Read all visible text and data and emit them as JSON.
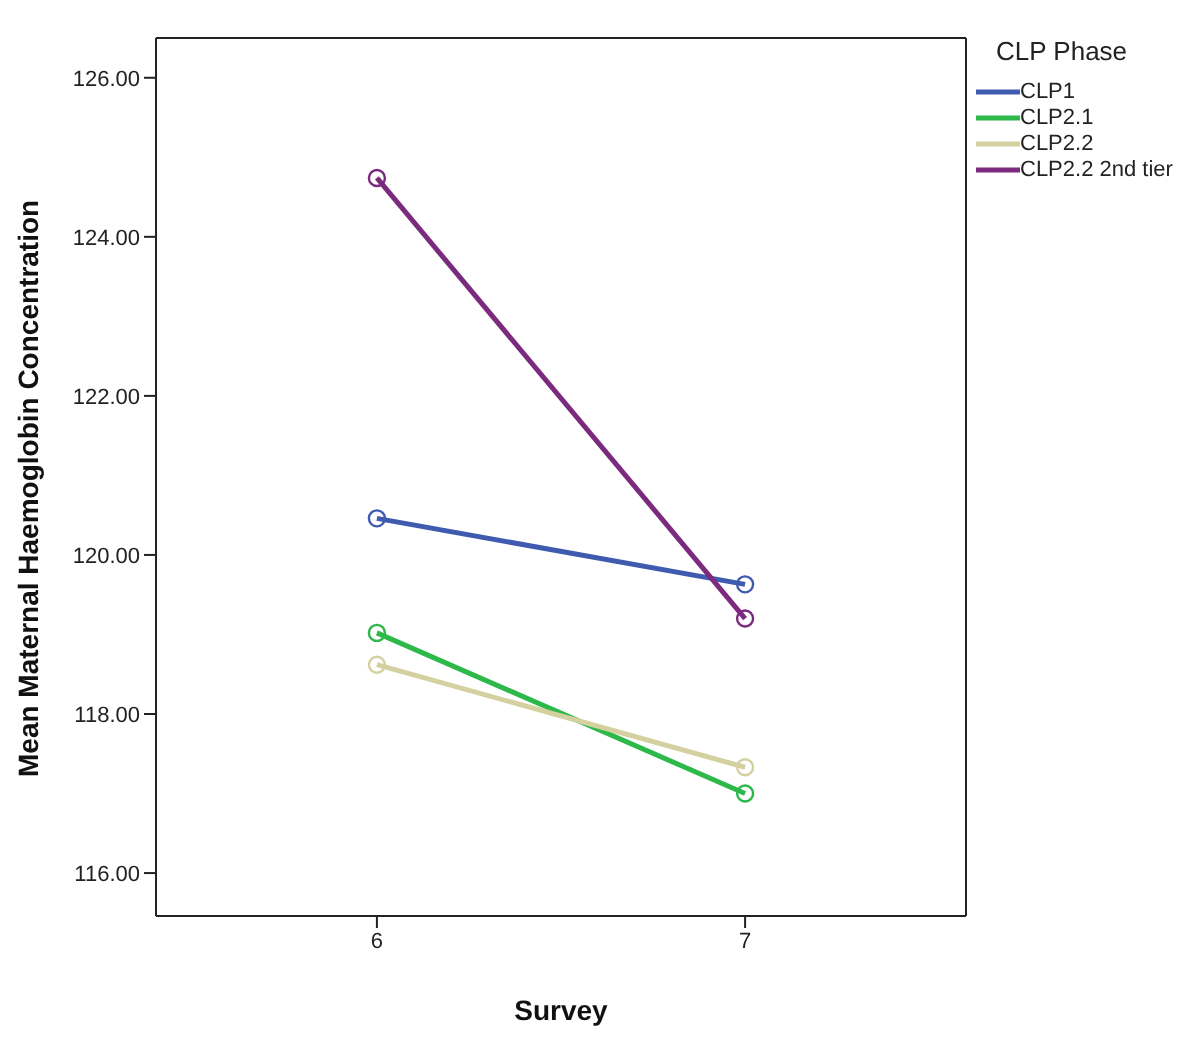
{
  "chart_data": {
    "type": "line",
    "xlabel": "Survey",
    "ylabel": "Mean Maternal Haemoglobin Concentration",
    "legend_title": "CLP Phase",
    "x": [
      6,
      7
    ],
    "series": [
      {
        "name": "CLP1",
        "color": "#3e5bb0",
        "values": [
          120.46,
          119.63
        ]
      },
      {
        "name": "CLP2.1",
        "color": "#2db84a",
        "values": [
          119.02,
          117.0
        ]
      },
      {
        "name": "CLP2.2",
        "color": "#d4d0a0",
        "values": [
          118.62,
          117.33
        ]
      },
      {
        "name": "CLP2.2 2nd tier",
        "color": "#7b2a7e",
        "values": [
          124.74,
          119.2
        ]
      }
    ],
    "xlim": [
      5.4,
      7.6
    ],
    "xticks": [
      6,
      7
    ],
    "ylim": [
      115.46,
      126.5
    ],
    "yticks": [
      {
        "value": 116,
        "label": "116.00"
      },
      {
        "value": 118,
        "label": "118.00"
      },
      {
        "value": 120,
        "label": "120.00"
      },
      {
        "value": 122,
        "label": "122.00"
      },
      {
        "value": 124,
        "label": "124.00"
      },
      {
        "value": 126,
        "label": "126.00"
      }
    ],
    "grid": false,
    "legend": "top right",
    "marker": "circle",
    "line_style": "solid"
  }
}
